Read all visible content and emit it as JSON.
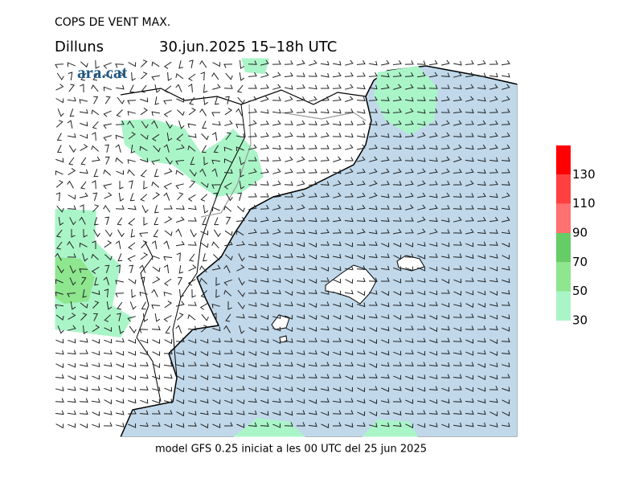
{
  "header": {
    "title": "COPS DE VENT MAX.",
    "day": "Dilluns",
    "period": "30.jun.2025 15–18h UTC"
  },
  "logo": "ara.cat",
  "legend": {
    "ticks": [
      30,
      50,
      70,
      90,
      110,
      130
    ],
    "colors": [
      "#aaf5c8",
      "#8ee68e",
      "#66cc66",
      "#ff7070",
      "#ff4040",
      "#ff0000"
    ]
  },
  "footer": "model GFS 0.25 iniciat a les 00 UTC del 25 jun 2025"
}
